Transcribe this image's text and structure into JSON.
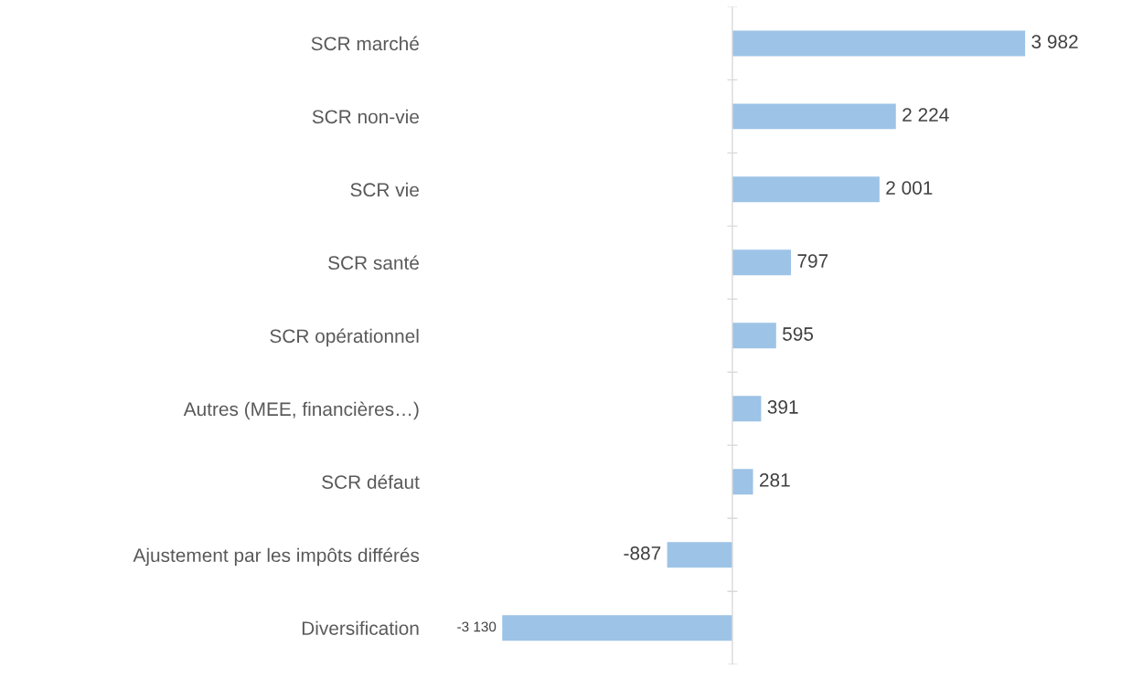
{
  "chart_data": {
    "type": "bar",
    "orientation": "horizontal",
    "categories": [
      "SCR marché",
      "SCR non-vie",
      "SCR vie",
      "SCR santé",
      "SCR opérationnel",
      "Autres (MEE, financières…)",
      "SCR défaut",
      "Ajustement par les impôts différés",
      "Diversification"
    ],
    "values": [
      3982,
      2224,
      2001,
      797,
      595,
      391,
      281,
      -887,
      -3130
    ],
    "value_labels": [
      "3 982",
      "2 224",
      "2 001",
      "797",
      "595",
      "391",
      "281",
      "-887",
      "-3 130"
    ],
    "color": "#9dc3e6",
    "grid": false,
    "legend": false
  }
}
